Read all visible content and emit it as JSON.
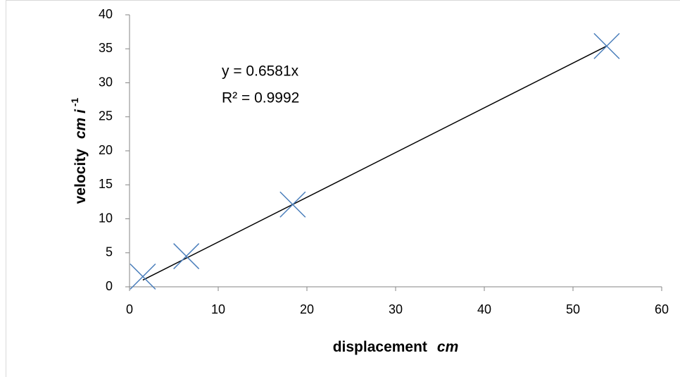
{
  "chart_data": {
    "type": "scatter",
    "x": [
      1.5,
      6.4,
      18.4,
      53.8
    ],
    "y": [
      1.5,
      4.5,
      12.1,
      35.4
    ],
    "color": "#4a7ebb",
    "xlim": [
      0,
      60
    ],
    "xticks": [
      0,
      10,
      20,
      30,
      40,
      50,
      60
    ],
    "ylim": [
      0,
      40
    ],
    "yticks": [
      0,
      5,
      10,
      15,
      20,
      25,
      30,
      35,
      40
    ],
    "xlabel": "displacement",
    "xlabel_unit": "cm",
    "ylabel": "velocity",
    "ylabel_unit": "cm i",
    "ylabel_exp": "-1",
    "trendline": {
      "slope": 0.6581,
      "equation": "y = 0.6581x",
      "r2": "R² = 0.9992"
    },
    "grid": false
  }
}
